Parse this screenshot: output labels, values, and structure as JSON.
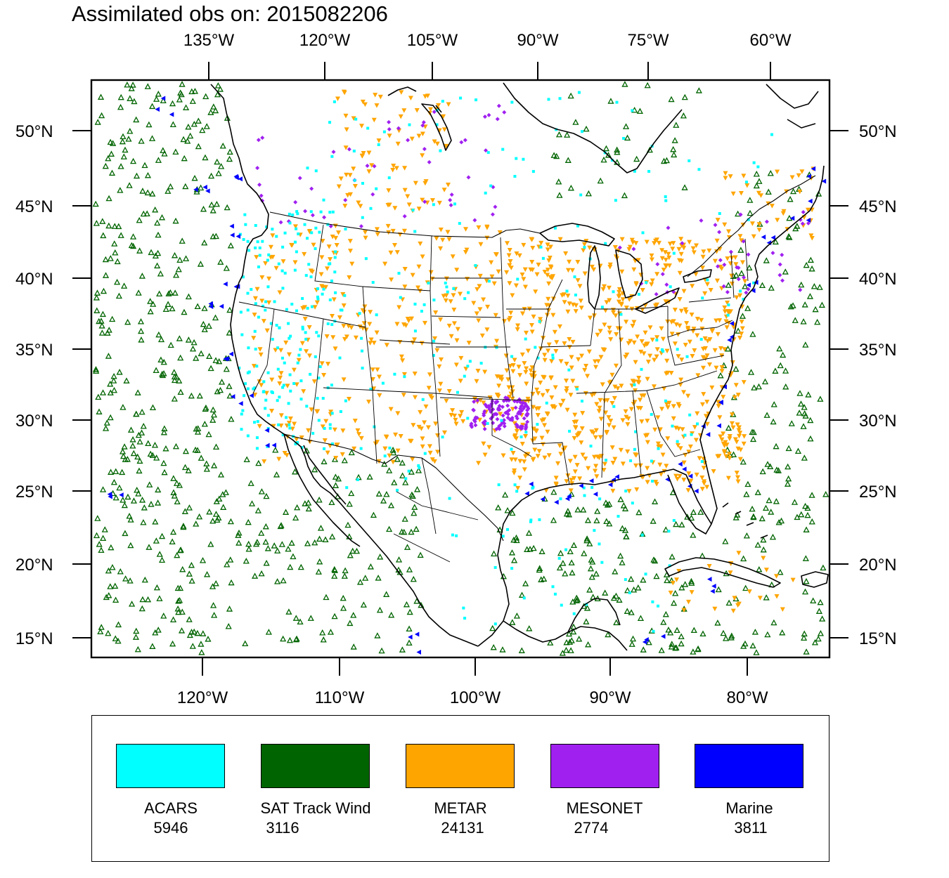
{
  "title": "Assimilated obs on: 2015082206",
  "top_lon_labels": [
    "135°W",
    "120°W",
    "105°W",
    "90°W",
    "75°W",
    "60°W"
  ],
  "bottom_lon_labels": [
    "120°W",
    "110°W",
    "100°W",
    "90°W",
    "80°W"
  ],
  "lat_labels": [
    "50°N",
    "45°N",
    "40°N",
    "35°N",
    "30°N",
    "25°N",
    "20°N",
    "15°N"
  ],
  "legend": [
    {
      "name": "ACARS",
      "count": "5946",
      "color": "#00ffff",
      "symbol": "square"
    },
    {
      "name": "SAT Track Wind",
      "count": "3116",
      "color": "#006400",
      "symbol": "triangle-open"
    },
    {
      "name": "METAR",
      "count": "24131",
      "color": "#ffa500",
      "symbol": "triangle-down"
    },
    {
      "name": "MESONET",
      "count": "2774",
      "color": "#a020f0",
      "symbol": "diamond"
    },
    {
      "name": "Marine",
      "count": "3811",
      "color": "#0000ff",
      "symbol": "triangle-left"
    }
  ],
  "colors": {
    "coast": "#000000",
    "border": "#000000",
    "frame": "#000000"
  }
}
